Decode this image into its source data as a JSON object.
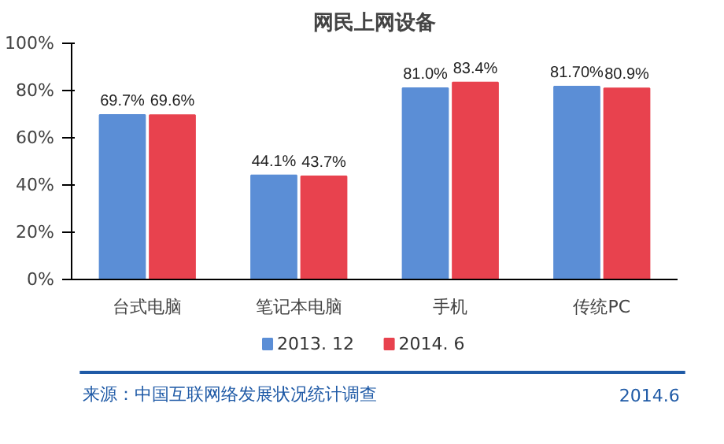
{
  "chart_data": {
    "type": "bar",
    "title": "网民上网设备",
    "categories": [
      "台式电脑",
      "笔记本电脑",
      "手机",
      "传统PC"
    ],
    "series": [
      {
        "name": "2013. 12",
        "color": "#5b8ed6",
        "values": [
          69.7,
          44.1,
          81.0,
          81.7
        ],
        "value_labels": [
          "69.7%",
          "44.1%",
          "81.0%",
          "81.70%"
        ]
      },
      {
        "name": "2014. 6",
        "color": "#e8424e",
        "values": [
          69.6,
          43.7,
          83.4,
          80.9
        ],
        "value_labels": [
          "69.6%",
          "43.7%",
          "83.4%",
          "80.9%"
        ]
      }
    ],
    "ylim": [
      0,
      100
    ],
    "yticks": [
      {
        "value": 0,
        "label": "0%"
      },
      {
        "value": 20,
        "label": "20%"
      },
      {
        "value": 40,
        "label": "40%"
      },
      {
        "value": 60,
        "label": "60%"
      },
      {
        "value": 80,
        "label": "80%"
      },
      {
        "value": 100,
        "label": "100%"
      }
    ],
    "grid": false,
    "legend": "bottom",
    "annotations": [
      "来源：中国互联网络发展状况统计调查",
      "2014.6"
    ]
  }
}
